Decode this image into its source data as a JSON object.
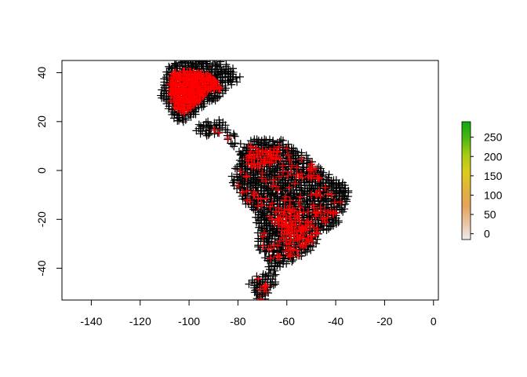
{
  "chart_data": {
    "type": "scatter",
    "title": "",
    "xlabel": "",
    "ylabel": "",
    "xlim": [
      -152,
      2
    ],
    "ylim": [
      -53,
      45
    ],
    "x_ticks": [
      -140,
      -120,
      -100,
      -80,
      -60,
      -40,
      -20,
      0
    ],
    "y_ticks": [
      -40,
      -20,
      0,
      20,
      40
    ],
    "x_tick_labels": [
      "-140",
      "-120",
      "-100",
      "-80",
      "-60",
      "-40",
      "-20",
      "0"
    ],
    "y_tick_labels": [
      "-40",
      "-20",
      "0",
      "20",
      "40"
    ],
    "marker": "+",
    "series": [
      {
        "color": "#000000",
        "regions": [
          {
            "polygon": [
              [
                -107,
                43
              ],
              [
                -100,
                45
              ],
              [
                -92,
                45
              ],
              [
                -85,
                42
              ],
              [
                -82,
                40
              ],
              [
                -80,
                38
              ],
              [
                -85,
                35
              ],
              [
                -88,
                30
              ],
              [
                -92,
                30
              ],
              [
                -95,
                27
              ],
              [
                -98,
                24
              ],
              [
                -100,
                22
              ],
              [
                -104,
                21
              ],
              [
                -106,
                23
              ],
              [
                -108,
                26
              ],
              [
                -109,
                28
              ],
              [
                -110,
                31
              ],
              [
                -109,
                35
              ],
              [
                -108,
                39
              ]
            ]
          },
          {
            "polygon": [
              [
                -86,
                18
              ],
              [
                -83,
                15
              ],
              [
                -82,
                11
              ],
              [
                -79,
                9
              ],
              [
                -77,
                8
              ],
              [
                -78,
                9
              ],
              [
                -81,
                11
              ],
              [
                -84,
                15
              ],
              [
                -88,
                17
              ],
              [
                -92,
                16
              ],
              [
                -95,
                16
              ],
              [
                -97,
                17
              ],
              [
                -92,
                19
              ],
              [
                -89,
                20
              ]
            ]
          },
          {
            "polygon": [
              [
                -75,
                11
              ],
              [
                -71,
                12
              ],
              [
                -66,
                11
              ],
              [
                -62,
                11
              ],
              [
                -59,
                9
              ],
              [
                -55,
                6
              ],
              [
                -51,
                4
              ],
              [
                -48,
                1
              ],
              [
                -45,
                -2
              ],
              [
                -41,
                -4
              ],
              [
                -37,
                -6
              ],
              [
                -35,
                -9
              ],
              [
                -37,
                -14
              ],
              [
                -39,
                -18
              ],
              [
                -41,
                -22
              ],
              [
                -45,
                -24
              ],
              [
                -48,
                -26
              ],
              [
                -49,
                -29
              ],
              [
                -52,
                -33
              ],
              [
                -55,
                -35
              ],
              [
                -58,
                -36
              ],
              [
                -62,
                -37
              ],
              [
                -64,
                -39
              ],
              [
                -65,
                -42
              ],
              [
                -67,
                -36
              ],
              [
                -70,
                -32
              ],
              [
                -71,
                -26
              ],
              [
                -71,
                -20
              ],
              [
                -72,
                -17
              ],
              [
                -76,
                -13
              ],
              [
                -79,
                -8
              ],
              [
                -81,
                -4
              ],
              [
                -81,
                -1
              ],
              [
                -79,
                2
              ],
              [
                -78,
                5
              ],
              [
                -77,
                8
              ]
            ]
          },
          {
            "polygon": [
              [
                -70,
                -43
              ],
              [
                -67,
                -42
              ],
              [
                -66,
                -46
              ],
              [
                -68,
                -50
              ],
              [
                -71,
                -53
              ],
              [
                -73,
                -50
              ],
              [
                -74,
                -46
              ]
            ]
          }
        ]
      },
      {
        "color": "#ff0000",
        "regions": [
          {
            "polygon": [
              [
                -107,
                40
              ],
              [
                -100,
                41
              ],
              [
                -93,
                40
              ],
              [
                -89,
                37
              ],
              [
                -87,
                33
              ],
              [
                -92,
                33
              ],
              [
                -96,
                28
              ],
              [
                -99,
                25
              ],
              [
                -103,
                23
              ],
              [
                -106,
                26
              ],
              [
                -108,
                29
              ],
              [
                -108,
                34
              ]
            ]
          },
          {
            "polygon": [
              [
                -92,
                18
              ],
              [
                -88,
                17
              ],
              [
                -85,
                14
              ],
              [
                -82,
                10
              ],
              [
                -80,
                9
              ],
              [
                -82,
                12
              ],
              [
                -86,
                15
              ],
              [
                -90,
                16
              ]
            ]
          },
          {
            "polygon": [
              [
                -75,
                8
              ],
              [
                -68,
                9
              ],
              [
                -63,
                8
              ],
              [
                -66,
                2
              ],
              [
                -72,
                0
              ],
              [
                -76,
                2
              ]
            ]
          },
          {
            "polygon": [
              [
                -65,
                -15
              ],
              [
                -57,
                -16
              ],
              [
                -50,
                -22
              ],
              [
                -52,
                -27
              ],
              [
                -57,
                -30
              ],
              [
                -62,
                -27
              ],
              [
                -64,
                -20
              ]
            ]
          }
        ]
      }
    ],
    "colorbar": {
      "ticks": [
        0,
        50,
        100,
        150,
        200,
        250
      ],
      "tick_labels": [
        "0",
        "50",
        "100",
        "150",
        "200",
        "250"
      ],
      "range": [
        -15,
        290
      ],
      "colors": [
        "#ececec",
        "#eac3a0",
        "#e6a35a",
        "#e0b33a",
        "#dccc1a",
        "#aacc10",
        "#4cb810",
        "#11a611"
      ]
    }
  }
}
